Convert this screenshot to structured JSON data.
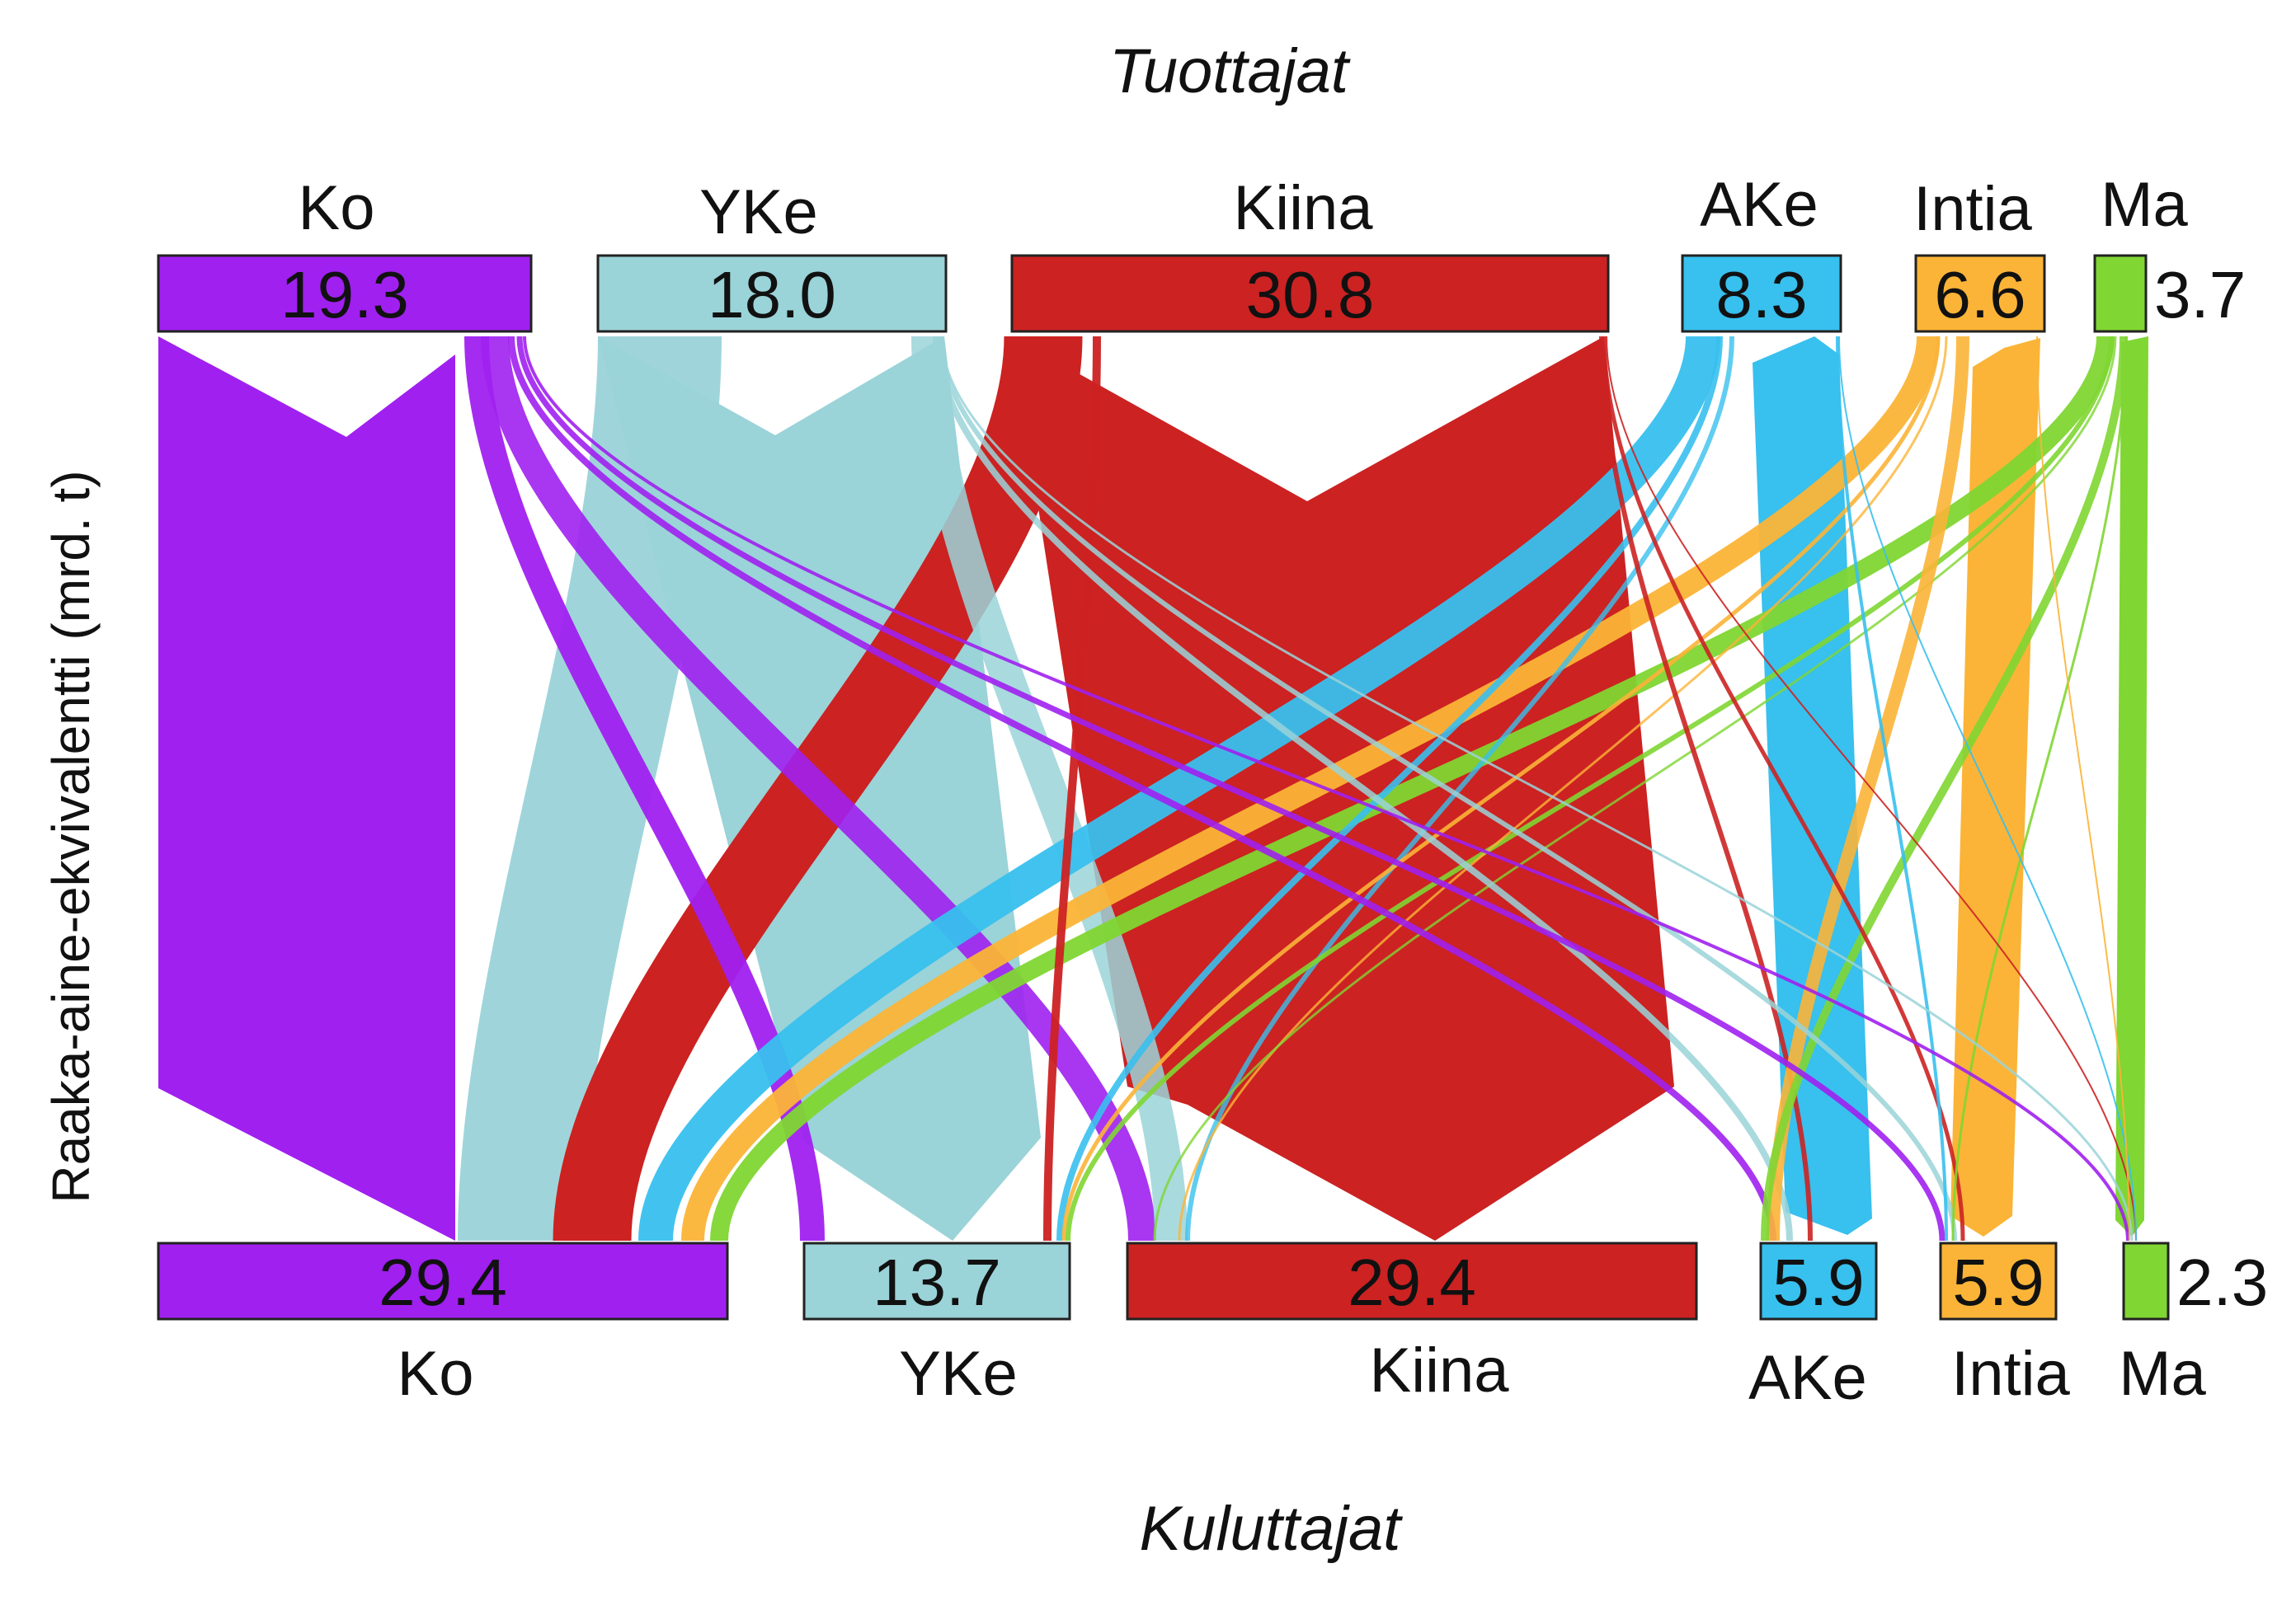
{
  "top_heading": "Tuottajat",
  "bottom_heading": "Kuluttajat",
  "axis_label": "Raaka-aine-ekvivalentti (mrd. t)",
  "producers": [
    {
      "id": "ko",
      "label": "Ko",
      "value": "19.3",
      "color": "#A020F0"
    },
    {
      "id": "yke",
      "label": "YKe",
      "value": "18.0",
      "color": "#9AD3D8"
    },
    {
      "id": "kiina",
      "label": "Kiina",
      "value": "30.8",
      "color": "#CC2222"
    },
    {
      "id": "ake",
      "label": "AKe",
      "value": "8.3",
      "color": "#38C0EE"
    },
    {
      "id": "intia",
      "label": "Intia",
      "value": "6.6",
      "color": "#FBB437"
    },
    {
      "id": "ma",
      "label": "Ma",
      "value": "3.7",
      "color": "#80D632"
    }
  ],
  "consumers": [
    {
      "id": "ko",
      "label": "Ko",
      "value": "29.4",
      "color": "#A020F0"
    },
    {
      "id": "yke",
      "label": "YKe",
      "value": "13.7",
      "color": "#9AD3D8"
    },
    {
      "id": "kiina",
      "label": "Kiina",
      "value": "29.4",
      "color": "#CC2222"
    },
    {
      "id": "ake",
      "label": "AKe",
      "value": "5.9",
      "color": "#38C0EE"
    },
    {
      "id": "intia",
      "label": "Intia",
      "value": "5.9",
      "color": "#FBB437"
    },
    {
      "id": "ma",
      "label": "Ma",
      "value": "2.3",
      "color": "#80D632"
    }
  ]
}
